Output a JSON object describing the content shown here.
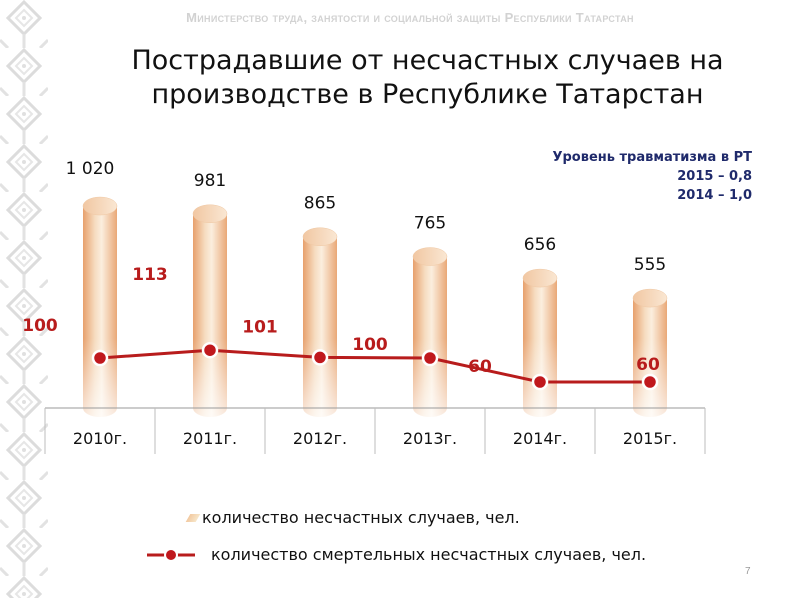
{
  "header": {
    "ministry": "Министерство труда, занятости и социальной защиты Республики Татарстан",
    "title_line1": "Пострадавшие  от несчастных случаев на",
    "title_line2": "производстве в Республике Татарстан"
  },
  "rate_box": {
    "line1": "Уровень травматизма в РТ",
    "line2": "2015 – 0,8",
    "line3": "2014 – 1,0"
  },
  "chart_data": {
    "type": "bar",
    "categories": [
      "2010г.",
      "2011г.",
      "2012г.",
      "2013г.",
      "2014г.",
      "2015г."
    ],
    "series": [
      {
        "name": "количество несчастных случаев, чел.",
        "chart_type": "bar (3D cylinders)",
        "values": [
          1020,
          981,
          865,
          765,
          656,
          555
        ],
        "labels": [
          "1 020",
          "981",
          "865",
          "765",
          "656",
          "555"
        ],
        "color": "#f3c9a1",
        "label_color": "#000000"
      },
      {
        "name": "количество смертельных несчастных случаев, чел.",
        "chart_type": "line",
        "values": [
          100,
          113,
          101,
          100,
          60,
          60
        ],
        "labels": [
          "100",
          "113",
          "101",
          "100",
          "60",
          "60"
        ],
        "color": "#b81c1c",
        "label_color": "#b81c1c"
      }
    ],
    "legend_placement": "bottom",
    "grid": false
  },
  "legend": {
    "item1": "количество несчастных случаев, чел.",
    "item2": "количество смертельных несчастных случаев, чел."
  },
  "page_number": "7",
  "colors": {
    "title": "#111111",
    "rate_text": "#1f2a6b",
    "line": "#b81c1c",
    "cylinder_light": "#f7e4c8",
    "cylinder_dark": "#e8a877"
  }
}
